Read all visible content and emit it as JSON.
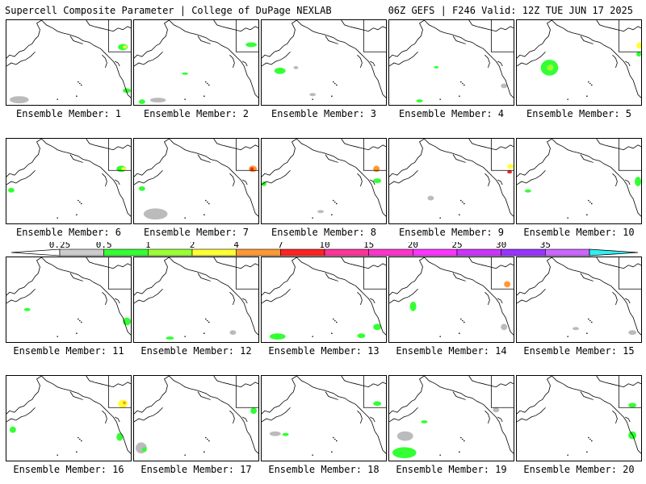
{
  "header": {
    "left": "Supercell Composite Parameter | College of DuPage NEXLAB",
    "right": "06Z GEFS | F246 Valid: 12Z TUE JUN 17 2025"
  },
  "panels": [
    {
      "label": "Ensemble Member: 1"
    },
    {
      "label": "Ensemble Member: 2"
    },
    {
      "label": "Ensemble Member: 3"
    },
    {
      "label": "Ensemble Member: 4"
    },
    {
      "label": "Ensemble Member: 5"
    },
    {
      "label": "Ensemble Member: 6"
    },
    {
      "label": "Ensemble Member: 7"
    },
    {
      "label": "Ensemble Member: 8"
    },
    {
      "label": "Ensemble Member: 9"
    },
    {
      "label": "Ensemble Member: 10"
    },
    {
      "label": "Ensemble Member: 11"
    },
    {
      "label": "Ensemble Member: 12"
    },
    {
      "label": "Ensemble Member: 13"
    },
    {
      "label": "Ensemble Member: 14"
    },
    {
      "label": "Ensemble Member: 15"
    },
    {
      "label": "Ensemble Member: 16"
    },
    {
      "label": "Ensemble Member: 17"
    },
    {
      "label": "Ensemble Member: 18"
    },
    {
      "label": "Ensemble Member: 19"
    },
    {
      "label": "Ensemble Member: 20"
    }
  ],
  "colorbar": {
    "ticks": [
      "0.25",
      "0.5",
      "1",
      "2",
      "4",
      "7",
      "10",
      "15",
      "20",
      "25",
      "30",
      "35"
    ],
    "colors": [
      "#cccccc",
      "#33ff33",
      "#99ff33",
      "#ffff33",
      "#ff9933",
      "#ff2222",
      "#ff3399",
      "#ff33cc",
      "#ff33ff",
      "#cc33ff",
      "#9933ff",
      "#cc66ff",
      "#33eeee"
    ]
  }
}
